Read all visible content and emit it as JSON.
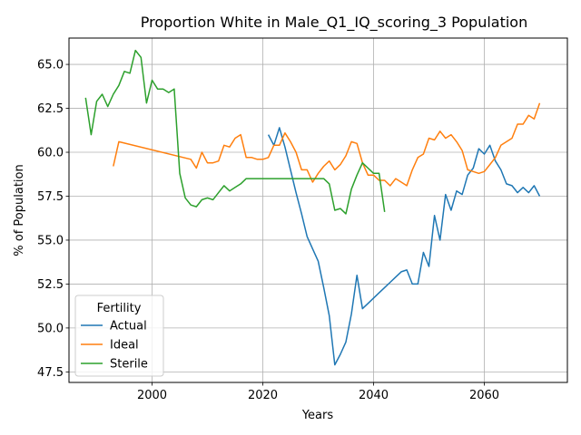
{
  "chart_data": {
    "type": "line",
    "title": "Proportion White in Male_Q1_IQ_scoring_3 Population",
    "xlabel": "Years",
    "ylabel": "% of Population",
    "xlim": [
      1985,
      2075
    ],
    "ylim": [
      46.9,
      66.5
    ],
    "xticks": [
      2000,
      2020,
      2040,
      2060
    ],
    "yticks": [
      47.5,
      50.0,
      52.5,
      55.0,
      57.5,
      60.0,
      62.5,
      65.0
    ],
    "ytick_labels": [
      "47.5",
      "50.0",
      "52.5",
      "55.0",
      "57.5",
      "60.0",
      "62.5",
      "65.0"
    ],
    "grid": true,
    "legend": {
      "title": "Fertility",
      "position": "lower-left"
    },
    "series": [
      {
        "name": "Actual",
        "color": "#1f77b4",
        "x": [
          2021,
          2022,
          2023,
          2024,
          2025,
          2026,
          2027,
          2028,
          2029,
          2030,
          2031,
          2032,
          2033,
          2034,
          2035,
          2036,
          2037,
          2038,
          2039,
          2040,
          2041,
          2042,
          2043,
          2044,
          2045,
          2046,
          2047,
          2048,
          2049,
          2050,
          2051,
          2052,
          2053,
          2054,
          2055,
          2056,
          2057,
          2058,
          2059,
          2060,
          2061,
          2062,
          2063,
          2064,
          2065,
          2066,
          2067,
          2068,
          2069,
          2070
        ],
        "y": [
          61.0,
          60.4,
          61.4,
          60.3,
          59.0,
          57.7,
          56.5,
          55.2,
          54.5,
          53.8,
          52.3,
          50.7,
          47.9,
          48.5,
          49.2,
          50.8,
          53.0,
          51.1,
          51.4,
          51.7,
          52.0,
          52.3,
          52.6,
          52.9,
          53.2,
          53.3,
          52.5,
          52.5,
          54.3,
          53.5,
          56.4,
          55.0,
          57.6,
          56.7,
          57.8,
          57.6,
          58.7,
          59.1,
          60.2,
          59.9,
          60.4,
          59.5,
          59.0,
          58.2,
          58.1,
          57.7,
          58.0,
          57.7,
          58.1,
          57.5
        ]
      },
      {
        "name": "Ideal",
        "color": "#ff7f0e",
        "x": [
          1993,
          1994,
          2007,
          2008,
          2009,
          2010,
          2011,
          2012,
          2013,
          2014,
          2015,
          2016,
          2017,
          2018,
          2019,
          2020,
          2021,
          2022,
          2023,
          2024,
          2025,
          2026,
          2027,
          2028,
          2029,
          2030,
          2031,
          2032,
          2033,
          2034,
          2035,
          2036,
          2037,
          2038,
          2039,
          2040,
          2041,
          2042,
          2043,
          2044,
          2045,
          2046,
          2047,
          2048,
          2049,
          2050,
          2051,
          2052,
          2053,
          2054,
          2055,
          2056,
          2057,
          2058,
          2059,
          2060,
          2061,
          2062,
          2063,
          2064,
          2065,
          2066,
          2067,
          2068,
          2069,
          2070
        ],
        "y": [
          59.2,
          60.6,
          59.6,
          59.1,
          60.0,
          59.4,
          59.4,
          59.5,
          60.4,
          60.3,
          60.8,
          61.0,
          59.7,
          59.7,
          59.6,
          59.6,
          59.7,
          60.4,
          60.4,
          61.1,
          60.6,
          60.0,
          59.0,
          59.0,
          58.3,
          58.8,
          59.2,
          59.5,
          59.0,
          59.3,
          59.8,
          60.6,
          60.5,
          59.4,
          58.7,
          58.7,
          58.4,
          58.4,
          58.1,
          58.5,
          58.3,
          58.1,
          59.0,
          59.7,
          59.9,
          60.8,
          60.7,
          61.2,
          60.8,
          61.0,
          60.6,
          60.1,
          59.0,
          58.9,
          58.8,
          58.9,
          59.3,
          59.7,
          60.4,
          60.6,
          60.8,
          61.6,
          61.6,
          62.1,
          61.9,
          62.8
        ]
      },
      {
        "name": "Sterile",
        "color": "#2ca02c",
        "x": [
          1988,
          1989,
          1990,
          1991,
          1992,
          1993,
          1994,
          1995,
          1996,
          1997,
          1998,
          1999,
          2000,
          2001,
          2002,
          2003,
          2004,
          2005,
          2006,
          2007,
          2008,
          2009,
          2010,
          2011,
          2012,
          2013,
          2014,
          2015,
          2016,
          2017,
          2030,
          2031,
          2032,
          2033,
          2034,
          2035,
          2036,
          2037,
          2038,
          2039,
          2040,
          2041,
          2042
        ],
        "y": [
          63.1,
          61.0,
          62.9,
          63.3,
          62.6,
          63.3,
          63.8,
          64.6,
          64.5,
          65.8,
          65.4,
          62.8,
          64.1,
          63.6,
          63.6,
          63.4,
          63.6,
          58.8,
          57.4,
          57.0,
          56.9,
          57.3,
          57.4,
          57.3,
          57.7,
          58.1,
          57.8,
          58.0,
          58.2,
          58.5,
          58.5,
          58.5,
          58.2,
          56.7,
          56.8,
          56.5,
          57.9,
          58.7,
          59.4,
          59.1,
          58.8,
          58.8,
          56.6
        ]
      }
    ]
  }
}
